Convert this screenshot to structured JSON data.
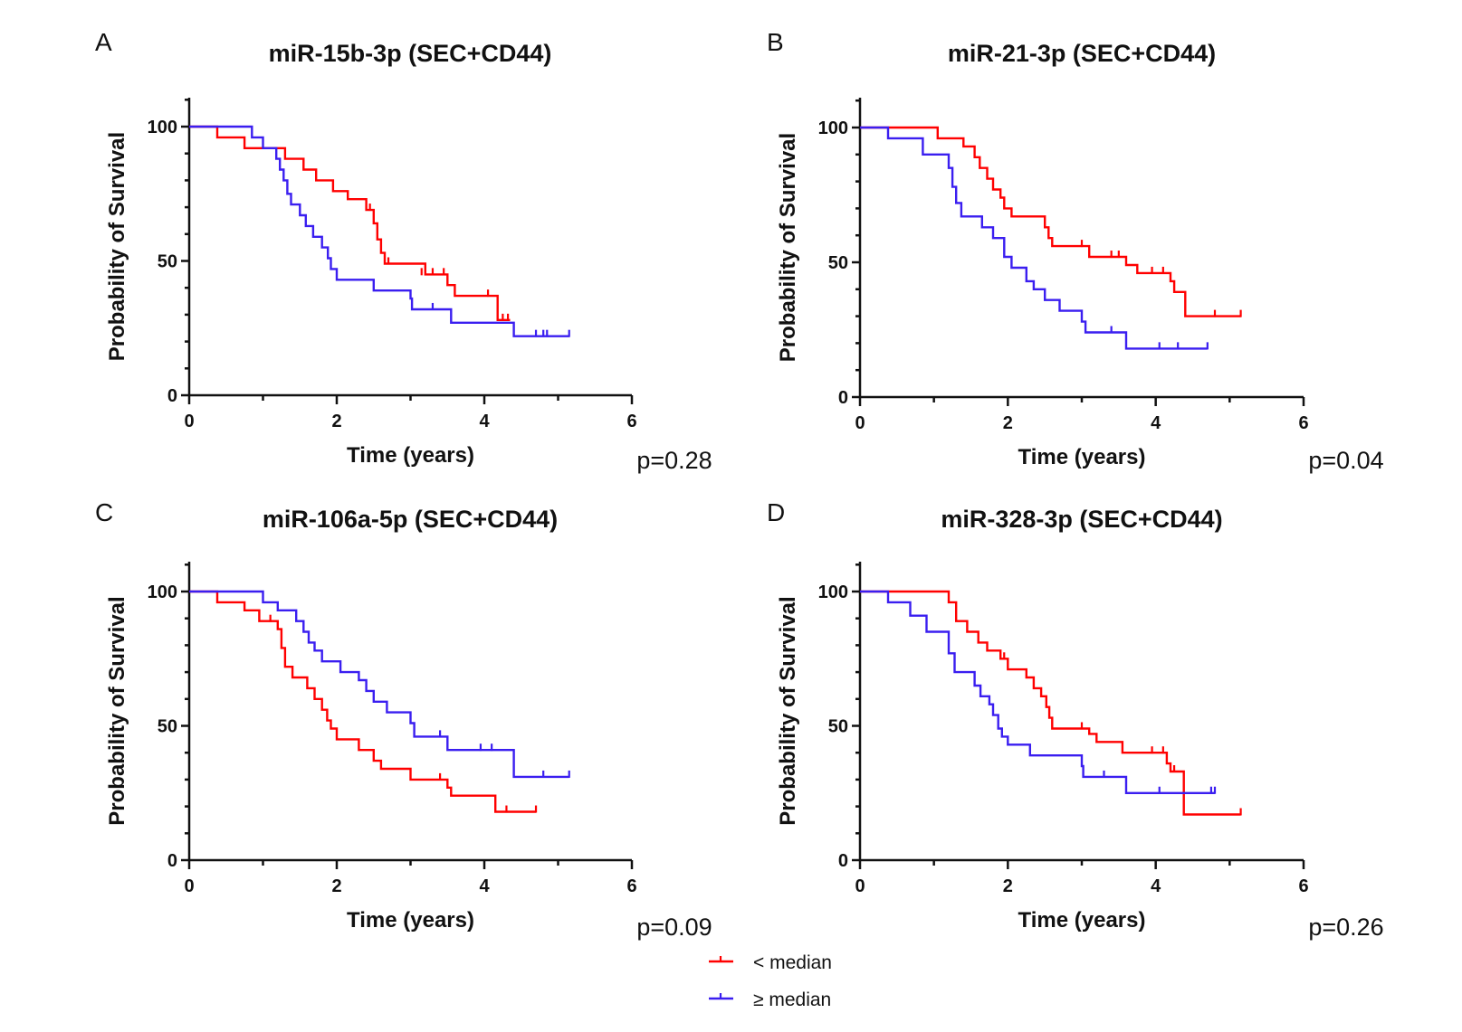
{
  "colors": {
    "low": "#ff0000",
    "high": "#3a1ef0",
    "axis": "#111111"
  },
  "legend": [
    {
      "key": "low",
      "label": "< median"
    },
    {
      "key": "high",
      "label": "≥ median"
    }
  ],
  "chart_data": [
    {
      "type": "line",
      "letter": "A",
      "title": "miR-15b-3p (SEC+CD44)",
      "xlabel": "Time (years)",
      "ylabel": "Probability of Survival",
      "xlim": [
        0,
        6
      ],
      "ylim": [
        0,
        110
      ],
      "xticks": [
        0,
        2,
        4,
        6
      ],
      "yticks": [
        0,
        50,
        100
      ],
      "p_value": "p=0.28",
      "series": [
        {
          "name": "< median",
          "key": "low",
          "steps": [
            [
              0,
              100
            ],
            [
              0.38,
              96
            ],
            [
              0.75,
              92
            ],
            [
              1.3,
              88
            ],
            [
              1.55,
              84
            ],
            [
              1.72,
              80
            ],
            [
              1.95,
              76
            ],
            [
              2.15,
              73
            ],
            [
              2.4,
              69
            ],
            [
              2.5,
              64
            ],
            [
              2.55,
              58
            ],
            [
              2.6,
              53
            ],
            [
              2.65,
              49
            ],
            [
              3.1,
              49
            ],
            [
              3.2,
              45
            ],
            [
              3.5,
              41
            ],
            [
              3.6,
              37
            ],
            [
              4.15,
              37
            ],
            [
              4.18,
              28
            ],
            [
              4.35,
              28
            ]
          ],
          "censored": [
            [
              2.45,
              69
            ],
            [
              2.7,
              49
            ],
            [
              3.15,
              45
            ],
            [
              3.3,
              45
            ],
            [
              3.45,
              45
            ],
            [
              4.05,
              37
            ],
            [
              4.25,
              28
            ],
            [
              4.32,
              28
            ]
          ]
        },
        {
          "name": "≥ median",
          "key": "high",
          "steps": [
            [
              0,
              100
            ],
            [
              0.85,
              96
            ],
            [
              1.0,
              92
            ],
            [
              1.18,
              88
            ],
            [
              1.23,
              84
            ],
            [
              1.28,
              80
            ],
            [
              1.33,
              75
            ],
            [
              1.38,
              71
            ],
            [
              1.5,
              67
            ],
            [
              1.58,
              63
            ],
            [
              1.68,
              59
            ],
            [
              1.8,
              55
            ],
            [
              1.88,
              51
            ],
            [
              1.92,
              47
            ],
            [
              2.0,
              43
            ],
            [
              2.5,
              39
            ],
            [
              3.0,
              36
            ],
            [
              3.02,
              32
            ],
            [
              3.55,
              27
            ],
            [
              4.4,
              22
            ],
            [
              5.15,
              22
            ]
          ],
          "censored": [
            [
              3.3,
              32
            ],
            [
              4.7,
              22
            ],
            [
              4.8,
              22
            ],
            [
              4.85,
              22
            ],
            [
              5.15,
              22
            ]
          ]
        }
      ]
    },
    {
      "type": "line",
      "letter": "B",
      "title": "miR-21-3p (SEC+CD44)",
      "xlabel": "Time (years)",
      "ylabel": "Probability of Survival",
      "xlim": [
        0,
        6
      ],
      "ylim": [
        0,
        110
      ],
      "xticks": [
        0,
        2,
        4,
        6
      ],
      "yticks": [
        0,
        50,
        100
      ],
      "p_value": "p=0.04",
      "series": [
        {
          "name": "< median",
          "key": "low",
          "steps": [
            [
              0,
              100
            ],
            [
              1.05,
              96
            ],
            [
              1.4,
              93
            ],
            [
              1.55,
              89
            ],
            [
              1.62,
              85
            ],
            [
              1.72,
              81
            ],
            [
              1.8,
              77
            ],
            [
              1.9,
              74
            ],
            [
              1.95,
              70
            ],
            [
              2.05,
              67
            ],
            [
              2.5,
              63
            ],
            [
              2.55,
              59
            ],
            [
              2.6,
              56
            ],
            [
              3.05,
              56
            ],
            [
              3.1,
              52
            ],
            [
              3.6,
              49
            ],
            [
              3.75,
              46
            ],
            [
              4.2,
              43
            ],
            [
              4.25,
              39
            ],
            [
              4.4,
              30
            ],
            [
              5.15,
              30
            ]
          ],
          "censored": [
            [
              3.0,
              56
            ],
            [
              3.4,
              52
            ],
            [
              3.5,
              52
            ],
            [
              3.95,
              46
            ],
            [
              4.1,
              46
            ],
            [
              4.8,
              30
            ],
            [
              5.15,
              30
            ]
          ]
        },
        {
          "name": "≥ median",
          "key": "high",
          "steps": [
            [
              0,
              100
            ],
            [
              0.38,
              96
            ],
            [
              0.85,
              90
            ],
            [
              1.2,
              85
            ],
            [
              1.25,
              78
            ],
            [
              1.3,
              72
            ],
            [
              1.37,
              67
            ],
            [
              1.65,
              63
            ],
            [
              1.8,
              59
            ],
            [
              1.95,
              52
            ],
            [
              2.05,
              48
            ],
            [
              2.25,
              43
            ],
            [
              2.35,
              40
            ],
            [
              2.5,
              36
            ],
            [
              2.7,
              32
            ],
            [
              3.0,
              28
            ],
            [
              3.05,
              24
            ],
            [
              3.6,
              18
            ],
            [
              4.7,
              18
            ]
          ],
          "censored": [
            [
              3.4,
              24
            ],
            [
              4.05,
              18
            ],
            [
              4.3,
              18
            ],
            [
              4.7,
              18
            ]
          ]
        }
      ]
    },
    {
      "type": "line",
      "letter": "C",
      "title": "miR-106a-5p (SEC+CD44)",
      "xlabel": "Time (years)",
      "ylabel": "Probability of Survival",
      "xlim": [
        0,
        6
      ],
      "ylim": [
        0,
        110
      ],
      "xticks": [
        0,
        2,
        4,
        6
      ],
      "yticks": [
        0,
        50,
        100
      ],
      "p_value": "p=0.09",
      "series": [
        {
          "name": "< median",
          "key": "low",
          "steps": [
            [
              0,
              100
            ],
            [
              0.38,
              96
            ],
            [
              0.75,
              93
            ],
            [
              0.95,
              89
            ],
            [
              1.2,
              86
            ],
            [
              1.25,
              79
            ],
            [
              1.3,
              72
            ],
            [
              1.4,
              68
            ],
            [
              1.6,
              64
            ],
            [
              1.7,
              60
            ],
            [
              1.8,
              56
            ],
            [
              1.87,
              52
            ],
            [
              1.92,
              49
            ],
            [
              2.0,
              45
            ],
            [
              2.3,
              41
            ],
            [
              2.5,
              37
            ],
            [
              2.6,
              34
            ],
            [
              3.0,
              30
            ],
            [
              3.5,
              27
            ],
            [
              3.55,
              24
            ],
            [
              4.15,
              18
            ],
            [
              4.7,
              18
            ]
          ],
          "censored": [
            [
              1.1,
              89
            ],
            [
              3.4,
              30
            ],
            [
              4.3,
              18
            ],
            [
              4.7,
              18
            ]
          ]
        },
        {
          "name": "≥ median",
          "key": "high",
          "steps": [
            [
              0,
              100
            ],
            [
              1.0,
              96
            ],
            [
              1.2,
              93
            ],
            [
              1.45,
              89
            ],
            [
              1.55,
              85
            ],
            [
              1.62,
              81
            ],
            [
              1.7,
              78
            ],
            [
              1.8,
              74
            ],
            [
              2.05,
              70
            ],
            [
              2.3,
              67
            ],
            [
              2.4,
              63
            ],
            [
              2.5,
              59
            ],
            [
              2.68,
              55
            ],
            [
              3.0,
              51
            ],
            [
              3.05,
              46
            ],
            [
              3.5,
              41
            ],
            [
              4.4,
              31
            ],
            [
              5.15,
              31
            ]
          ],
          "censored": [
            [
              3.4,
              46
            ],
            [
              3.95,
              41
            ],
            [
              4.1,
              41
            ],
            [
              4.8,
              31
            ],
            [
              5.15,
              31
            ]
          ]
        }
      ]
    },
    {
      "type": "line",
      "letter": "D",
      "title": "miR-328-3p (SEC+CD44)",
      "xlabel": "Time (years)",
      "ylabel": "Probability of Survival",
      "xlim": [
        0,
        6
      ],
      "ylim": [
        0,
        110
      ],
      "xticks": [
        0,
        2,
        4,
        6
      ],
      "yticks": [
        0,
        50,
        100
      ],
      "p_value": "p=0.26",
      "series": [
        {
          "name": "< median",
          "key": "low",
          "steps": [
            [
              0,
              100
            ],
            [
              1.2,
              96
            ],
            [
              1.3,
              89
            ],
            [
              1.45,
              85
            ],
            [
              1.6,
              81
            ],
            [
              1.72,
              78
            ],
            [
              1.9,
              75
            ],
            [
              2.0,
              71
            ],
            [
              2.25,
              68
            ],
            [
              2.35,
              64
            ],
            [
              2.45,
              61
            ],
            [
              2.52,
              57
            ],
            [
              2.56,
              53
            ],
            [
              2.6,
              49
            ],
            [
              3.1,
              47
            ],
            [
              3.2,
              44
            ],
            [
              3.55,
              40
            ],
            [
              4.15,
              36
            ],
            [
              4.2,
              33
            ],
            [
              4.35,
              33
            ],
            [
              4.38,
              17
            ],
            [
              5.15,
              17
            ]
          ],
          "censored": [
            [
              1.95,
              75
            ],
            [
              3.0,
              49
            ],
            [
              3.95,
              40
            ],
            [
              4.1,
              40
            ],
            [
              4.25,
              33
            ],
            [
              5.15,
              17
            ]
          ]
        },
        {
          "name": "≥ median",
          "key": "high",
          "steps": [
            [
              0,
              100
            ],
            [
              0.38,
              96
            ],
            [
              0.68,
              91
            ],
            [
              0.9,
              85
            ],
            [
              1.2,
              77
            ],
            [
              1.28,
              70
            ],
            [
              1.55,
              65
            ],
            [
              1.63,
              61
            ],
            [
              1.75,
              58
            ],
            [
              1.8,
              54
            ],
            [
              1.87,
              49
            ],
            [
              1.92,
              46
            ],
            [
              2.0,
              43
            ],
            [
              2.3,
              39
            ],
            [
              3.0,
              35
            ],
            [
              3.02,
              31
            ],
            [
              3.6,
              25
            ],
            [
              4.8,
              25
            ]
          ],
          "censored": [
            [
              3.3,
              31
            ],
            [
              4.05,
              25
            ],
            [
              4.75,
              25
            ],
            [
              4.8,
              25
            ]
          ]
        }
      ]
    }
  ]
}
